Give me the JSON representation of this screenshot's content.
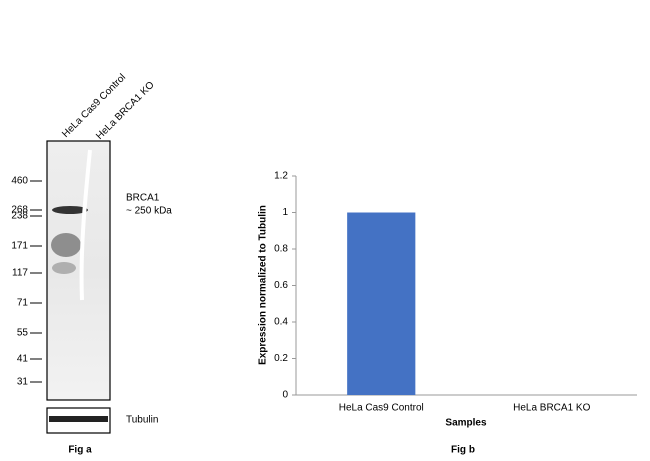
{
  "blot": {
    "lanes": [
      "HeLa Cas9 Control",
      "HeLa BRCA1 KO"
    ],
    "markers": [
      460,
      268,
      238,
      171,
      117,
      71,
      55,
      41,
      31
    ],
    "band_label": "BRCA1",
    "band_size": "~ 250 kDa",
    "loading_label": "Tubulin",
    "caption": "Fig a"
  },
  "chart_data": {
    "type": "bar",
    "categories": [
      "HeLa Cas9 Control",
      "HeLa BRCA1 KO"
    ],
    "values": [
      1,
      0
    ],
    "color": "#4472c4",
    "ylim": [
      0,
      1.2
    ],
    "yticks": [
      0,
      0.2,
      0.4,
      0.6,
      0.8,
      1,
      1.2
    ],
    "ylabel": "Expression normalized to Tubulin",
    "xlabel": "Samples",
    "caption": "Fig b"
  }
}
